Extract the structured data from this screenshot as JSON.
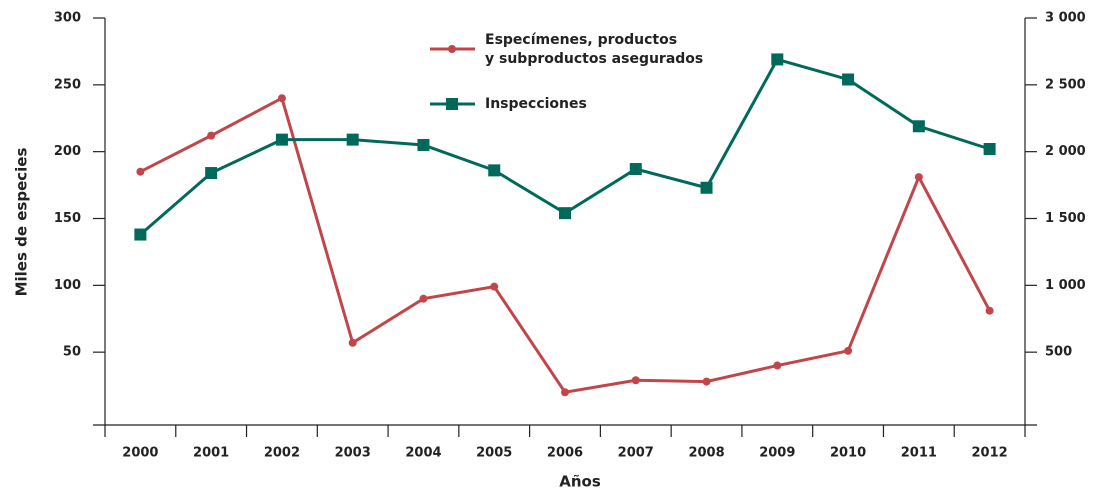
{
  "chart_data": {
    "type": "line",
    "y_label": "Miles de especies",
    "x_label": "Años",
    "categories": [
      "2000",
      "2001",
      "2002",
      "2003",
      "2004",
      "2005",
      "2006",
      "2007",
      "2008",
      "2009",
      "2010",
      "2011",
      "2012"
    ],
    "series": [
      {
        "name": "Especímenes, productos y subproductos asegurados",
        "color": "#c1464a",
        "marker": "circle",
        "values": [
          185,
          212,
          240,
          57,
          90,
          99,
          20,
          29,
          28,
          40,
          51,
          181,
          81
        ]
      },
      {
        "name": "Inspecciones",
        "color": "#00695a",
        "marker": "square",
        "axis": "y2",
        "values": [
          1380,
          1840,
          2090,
          2090,
          2050,
          1860,
          1540,
          1870,
          1730,
          2690,
          2540,
          2190,
          2020
        ]
      }
    ],
    "ylim": [
      0,
      300
    ],
    "yticks": [
      50,
      100,
      150,
      200,
      250,
      300
    ],
    "y2lim": [
      0,
      3000
    ],
    "y2ticks": [
      500,
      {
        "value": 1000,
        "label": "1 000"
      },
      {
        "value": 1500,
        "label": "1 500"
      },
      {
        "value": 2000,
        "label": "2 000"
      },
      {
        "value": 2500,
        "label": "2 500"
      },
      {
        "value": 3000,
        "label": "3 000"
      }
    ]
  }
}
